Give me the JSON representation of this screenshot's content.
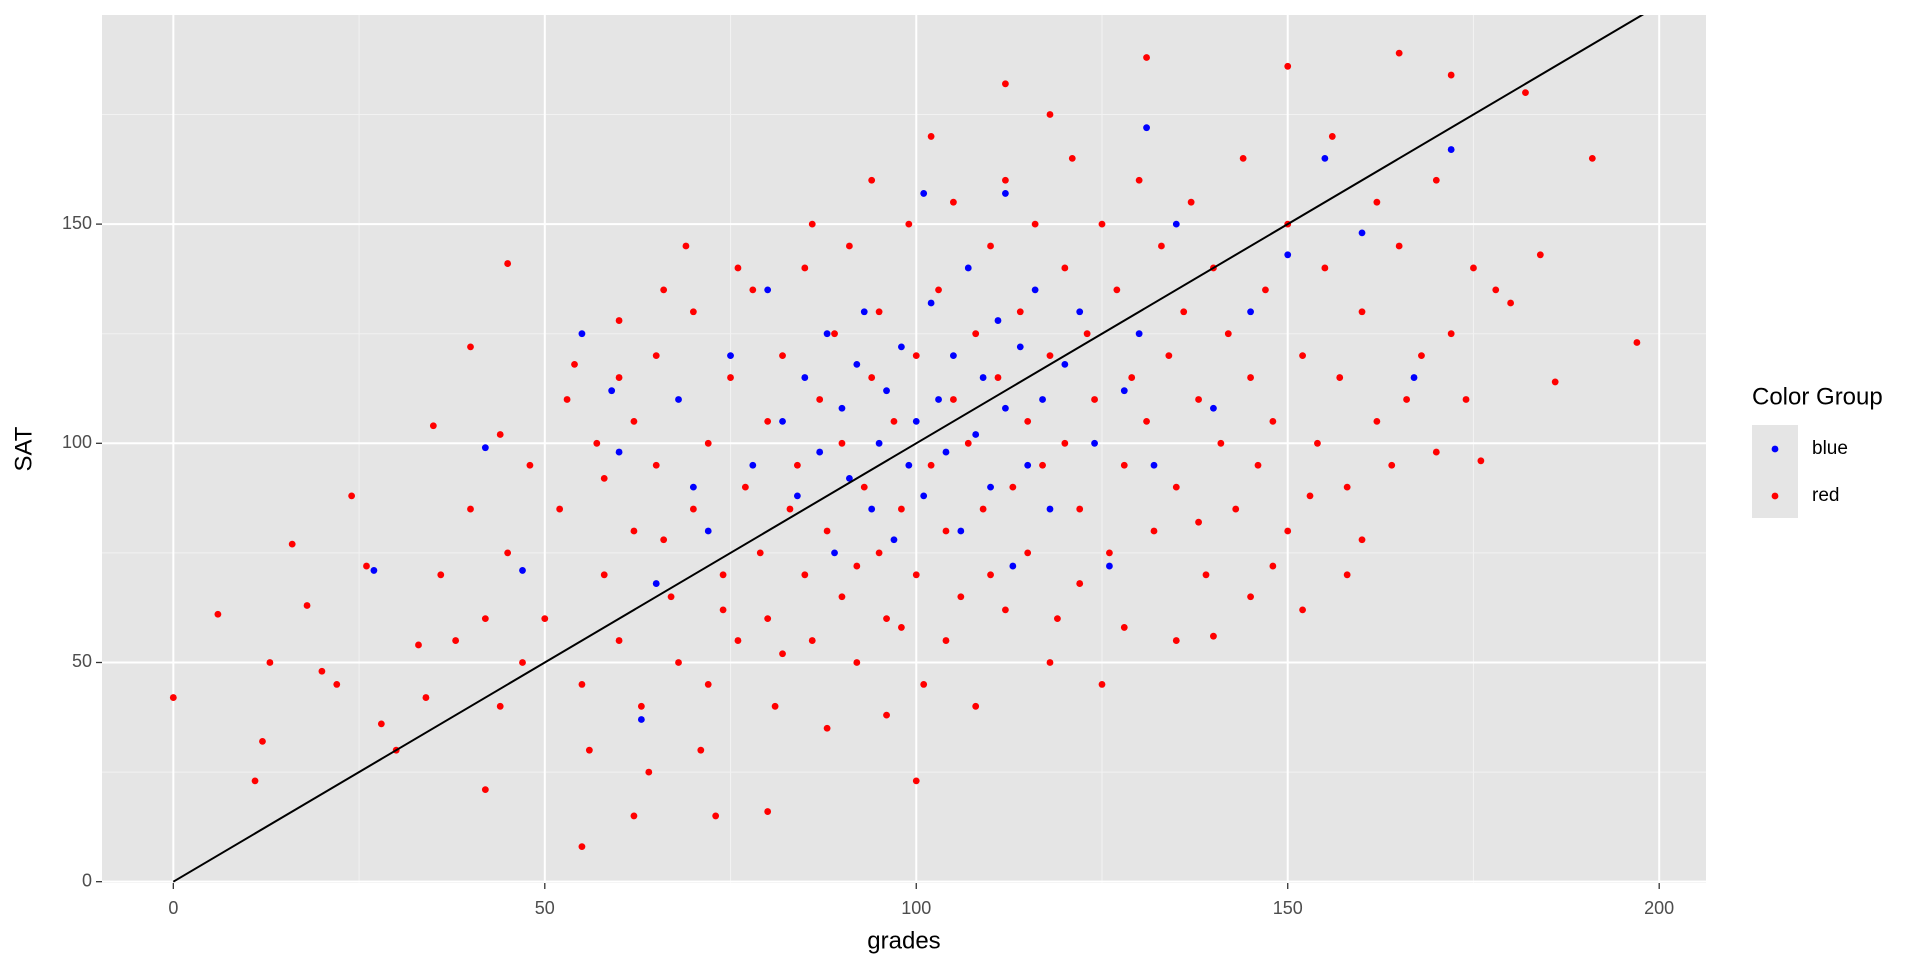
{
  "chart_data": {
    "type": "scatter",
    "x_label": "grades",
    "y_label": "SAT",
    "legend_title": "Color Group",
    "legend_position": "right",
    "grid": true,
    "xlim": [
      -9.6,
      206.3
    ],
    "ylim": [
      -0.3,
      197.7
    ],
    "xticks": [
      0,
      50,
      100,
      150,
      200
    ],
    "yticks": [
      0,
      50,
      100,
      150
    ],
    "minor_xticks": [
      25,
      75,
      125,
      175
    ],
    "minor_yticks": [
      25,
      75,
      125,
      175
    ],
    "series": [
      {
        "name": "red",
        "color": "#ff0000",
        "x": [
          0,
          6,
          11,
          12,
          13,
          16,
          18,
          22,
          26,
          28,
          33,
          35,
          40,
          42,
          45,
          55,
          62,
          73,
          80,
          100,
          112,
          131,
          150,
          165,
          172,
          182,
          191,
          197,
          186,
          184,
          176,
          170,
          178,
          160,
          152,
          140,
          50,
          52,
          55,
          57,
          58,
          60,
          60,
          62,
          63,
          65,
          65,
          67,
          68,
          70,
          70,
          72,
          72,
          74,
          75,
          76,
          77,
          78,
          79,
          80,
          80,
          81,
          82,
          83,
          84,
          85,
          85,
          86,
          87,
          88,
          89,
          90,
          90,
          91,
          92,
          93,
          94,
          95,
          95,
          96,
          97,
          98,
          99,
          100,
          100,
          101,
          102,
          103,
          104,
          105,
          105,
          106,
          107,
          108,
          109,
          110,
          110,
          111,
          112,
          113,
          114,
          115,
          115,
          116,
          117,
          118,
          119,
          120,
          120,
          121,
          122,
          123,
          124,
          125,
          126,
          127,
          128,
          129,
          130,
          131,
          132,
          133,
          134,
          135,
          136,
          137,
          138,
          139,
          140,
          141,
          142,
          143,
          144,
          145,
          146,
          147,
          148,
          150,
          150,
          152,
          154,
          155,
          157,
          158,
          160,
          162,
          165,
          168,
          45,
          47,
          48,
          42,
          44,
          40,
          38,
          36,
          53,
          56,
          64,
          66,
          69,
          71,
          88,
          94,
          102,
          118,
          125,
          135,
          145,
          156,
          162,
          170,
          175,
          118,
          108,
          96,
          86,
          76,
          60,
          54,
          58,
          62,
          66,
          74,
          82,
          92,
          98,
          104,
          112,
          122,
          128,
          138,
          148,
          153,
          158,
          164,
          166,
          172,
          174,
          180,
          44,
          30,
          24,
          20,
          34
        ],
        "values": [
          42,
          61,
          23,
          32,
          50,
          77,
          63,
          45,
          72,
          36,
          54,
          104,
          122,
          21,
          141,
          8,
          15,
          15,
          16,
          23,
          182,
          188,
          186,
          189,
          184,
          180,
          165,
          123,
          114,
          143,
          96,
          98,
          135,
          78,
          62,
          56,
          60,
          85,
          45,
          100,
          70,
          55,
          115,
          80,
          40,
          95,
          120,
          65,
          50,
          85,
          130,
          100,
          45,
          70,
          115,
          55,
          90,
          135,
          75,
          60,
          105,
          40,
          120,
          85,
          95,
          70,
          140,
          55,
          110,
          80,
          125,
          65,
          100,
          145,
          50,
          90,
          115,
          75,
          130,
          60,
          105,
          85,
          150,
          70,
          120,
          45,
          95,
          135,
          80,
          110,
          155,
          65,
          100,
          125,
          85,
          145,
          70,
          115,
          160,
          90,
          130,
          75,
          105,
          150,
          95,
          120,
          60,
          140,
          100,
          165,
          85,
          125,
          110,
          150,
          75,
          135,
          95,
          115,
          160,
          105,
          80,
          145,
          120,
          90,
          130,
          155,
          110,
          70,
          140,
          100,
          125,
          85,
          165,
          115,
          95,
          135,
          105,
          150,
          80,
          120,
          100,
          140,
          115,
          90,
          130,
          105,
          145,
          120,
          75,
          50,
          95,
          60,
          40,
          85,
          55,
          70,
          110,
          30,
          25,
          135,
          145,
          30,
          35,
          160,
          170,
          175,
          45,
          55,
          65,
          170,
          155,
          160,
          140,
          50,
          40,
          38,
          150,
          140,
          128,
          118,
          92,
          105,
          78,
          62,
          52,
          72,
          58,
          55,
          62,
          68,
          58,
          82,
          72,
          88,
          70,
          95,
          110,
          125,
          110,
          132,
          102,
          30,
          88,
          48,
          42
        ]
      },
      {
        "name": "blue",
        "color": "#0000ff",
        "x": [
          42,
          55,
          63,
          27,
          47,
          167,
          172,
          131,
          160,
          101,
          112,
          72,
          75,
          78,
          80,
          82,
          84,
          85,
          87,
          88,
          89,
          90,
          91,
          92,
          93,
          94,
          95,
          96,
          97,
          98,
          99,
          100,
          101,
          102,
          103,
          104,
          105,
          106,
          107,
          108,
          109,
          110,
          111,
          112,
          113,
          114,
          115,
          116,
          117,
          118,
          120,
          122,
          124,
          126,
          128,
          130,
          132,
          135,
          140,
          145,
          68,
          70,
          65,
          60,
          59,
          150,
          155
        ],
        "values": [
          99,
          125,
          37,
          71,
          71,
          115,
          167,
          172,
          148,
          157,
          157,
          80,
          120,
          95,
          135,
          105,
          88,
          115,
          98,
          125,
          75,
          108,
          92,
          118,
          130,
          85,
          100,
          112,
          78,
          122,
          95,
          105,
          88,
          132,
          110,
          98,
          120,
          80,
          140,
          102,
          115,
          90,
          128,
          108,
          72,
          122,
          95,
          135,
          110,
          85,
          118,
          130,
          100,
          72,
          112,
          125,
          95,
          150,
          108,
          130,
          110,
          90,
          68,
          98,
          112,
          143,
          165
        ]
      }
    ],
    "legend_order": [
      1,
      0
    ],
    "reference_line": {
      "x": [
        0,
        200
      ],
      "values": [
        0,
        200
      ],
      "color": "#000000"
    }
  }
}
